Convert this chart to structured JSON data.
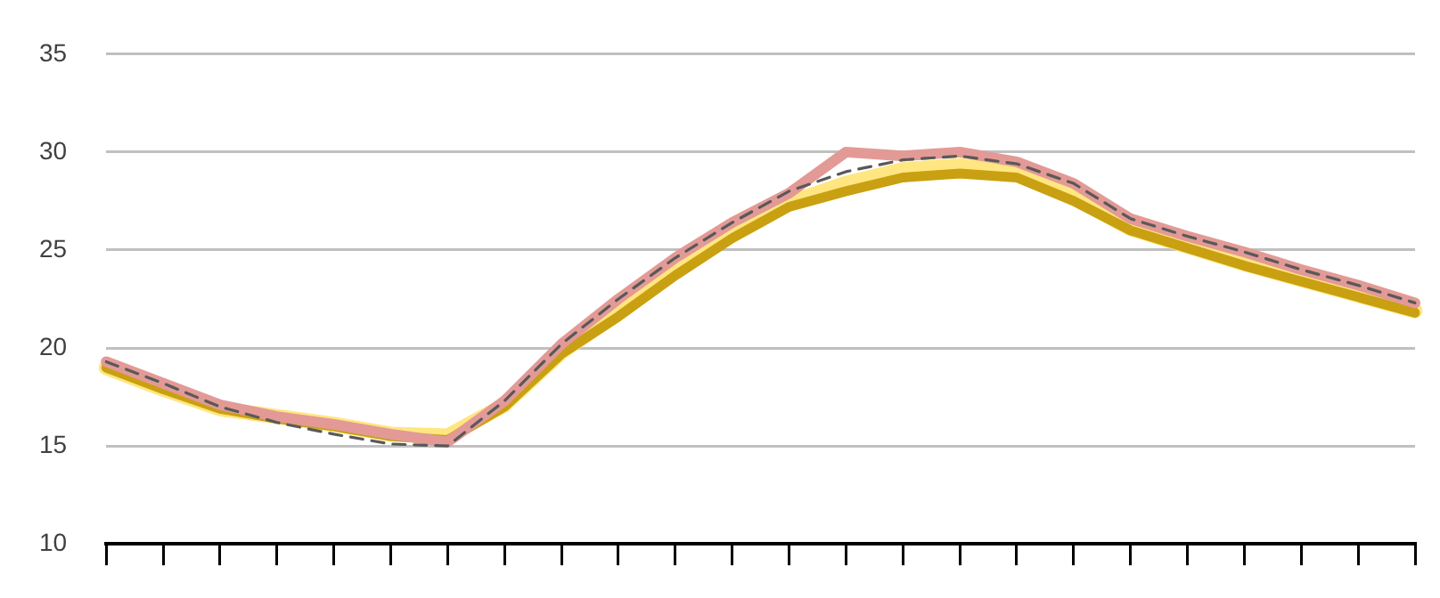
{
  "chart_data": {
    "type": "line",
    "categories": [
      null,
      null,
      null,
      null,
      null,
      null,
      null,
      null,
      null,
      null,
      null,
      null,
      null,
      null,
      null,
      null,
      null,
      null,
      null,
      null,
      null,
      null,
      null,
      null
    ],
    "series": [
      {
        "color": "#ffe680",
        "values": [
          19.0,
          17.9,
          16.9,
          16.5,
          16.1,
          15.6,
          15.5,
          17.1,
          19.8,
          21.8,
          23.9,
          25.8,
          27.4,
          28.4,
          29.1,
          29.3,
          29.0,
          27.7,
          26.1,
          25.2,
          24.3,
          23.5,
          22.7,
          21.9
        ]
      },
      {
        "color": "#c9a011",
        "values": [
          19.0,
          17.9,
          16.9,
          16.4,
          16.0,
          15.5,
          15.3,
          17.0,
          19.7,
          21.6,
          23.7,
          25.6,
          27.2,
          28.0,
          28.7,
          28.9,
          28.7,
          27.5,
          26.0,
          25.1,
          24.2,
          23.4,
          22.6,
          21.8
        ]
      },
      {
        "color": "#e39a96",
        "values": [
          19.3,
          18.2,
          17.1,
          16.5,
          16.1,
          15.6,
          15.2,
          17.3,
          20.2,
          22.5,
          24.6,
          26.4,
          27.9,
          30.0,
          29.8,
          30.0,
          29.5,
          28.4,
          26.6,
          25.7,
          24.9,
          24.0,
          23.2,
          22.3
        ]
      },
      {
        "color": "#595959",
        "line_style": "dashed",
        "values": [
          19.3,
          18.2,
          17.0,
          16.2,
          15.6,
          15.1,
          15.0,
          17.3,
          20.2,
          22.5,
          24.6,
          26.4,
          28.0,
          29.0,
          29.6,
          29.8,
          29.4,
          28.4,
          26.6,
          25.7,
          24.9,
          24.0,
          23.2,
          22.3
        ]
      }
    ],
    "ylim": [
      10,
      35
    ],
    "yticks": [
      10,
      15,
      20,
      25,
      30,
      35
    ],
    "grid": "y",
    "legend": false,
    "marker": "none",
    "tick_labels": "y"
  }
}
